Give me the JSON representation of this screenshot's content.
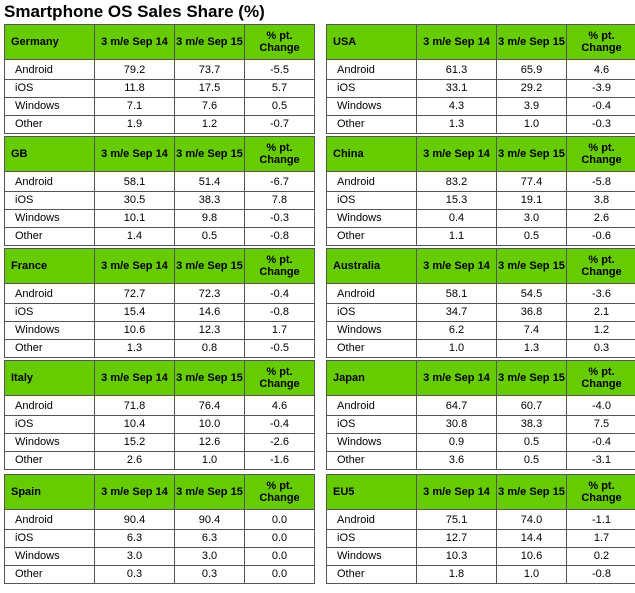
{
  "title": "Smartphone OS Sales Share (%)",
  "columns": {
    "col1": "3 m/e Sep 14",
    "col2": "3 m/e Sep 15",
    "col3": "% pt. Change"
  },
  "regions": [
    {
      "name": "Germany",
      "rows": [
        {
          "os": "Android",
          "v14": "79.2",
          "v15": "73.7",
          "chg": "-5.5"
        },
        {
          "os": "iOS",
          "v14": "11.8",
          "v15": "17.5",
          "chg": "5.7"
        },
        {
          "os": "Windows",
          "v14": "7.1",
          "v15": "7.6",
          "chg": "0.5"
        },
        {
          "os": "Other",
          "v14": "1.9",
          "v15": "1.2",
          "chg": "-0.7"
        }
      ]
    },
    {
      "name": "USA",
      "rows": [
        {
          "os": "Android",
          "v14": "61.3",
          "v15": "65.9",
          "chg": "4.6"
        },
        {
          "os": "iOS",
          "v14": "33.1",
          "v15": "29.2",
          "chg": "-3.9"
        },
        {
          "os": "Windows",
          "v14": "4.3",
          "v15": "3.9",
          "chg": "-0.4"
        },
        {
          "os": "Other",
          "v14": "1.3",
          "v15": "1.0",
          "chg": "-0.3"
        }
      ]
    },
    {
      "name": "GB",
      "rows": [
        {
          "os": "Android",
          "v14": "58.1",
          "v15": "51.4",
          "chg": "-6.7"
        },
        {
          "os": "iOS",
          "v14": "30.5",
          "v15": "38.3",
          "chg": "7.8"
        },
        {
          "os": "Windows",
          "v14": "10.1",
          "v15": "9.8",
          "chg": "-0.3"
        },
        {
          "os": "Other",
          "v14": "1.4",
          "v15": "0.5",
          "chg": "-0.8"
        }
      ]
    },
    {
      "name": "China",
      "rows": [
        {
          "os": "Android",
          "v14": "83.2",
          "v15": "77.4",
          "chg": "-5.8"
        },
        {
          "os": "iOS",
          "v14": "15.3",
          "v15": "19.1",
          "chg": "3.8"
        },
        {
          "os": "Windows",
          "v14": "0.4",
          "v15": "3.0",
          "chg": "2.6"
        },
        {
          "os": "Other",
          "v14": "1.1",
          "v15": "0.5",
          "chg": "-0.6"
        }
      ]
    },
    {
      "name": "France",
      "rows": [
        {
          "os": "Android",
          "v14": "72.7",
          "v15": "72.3",
          "chg": "-0.4"
        },
        {
          "os": "iOS",
          "v14": "15.4",
          "v15": "14.6",
          "chg": "-0.8"
        },
        {
          "os": "Windows",
          "v14": "10.6",
          "v15": "12.3",
          "chg": "1.7"
        },
        {
          "os": "Other",
          "v14": "1.3",
          "v15": "0.8",
          "chg": "-0.5"
        }
      ]
    },
    {
      "name": "Australia",
      "rows": [
        {
          "os": "Android",
          "v14": "58.1",
          "v15": "54.5",
          "chg": "-3.6"
        },
        {
          "os": "iOS",
          "v14": "34.7",
          "v15": "36.8",
          "chg": "2.1"
        },
        {
          "os": "Windows",
          "v14": "6.2",
          "v15": "7.4",
          "chg": "1.2"
        },
        {
          "os": "Other",
          "v14": "1.0",
          "v15": "1.3",
          "chg": "0.3"
        }
      ]
    },
    {
      "name": "Italy",
      "rows": [
        {
          "os": "Android",
          "v14": "71.8",
          "v15": "76.4",
          "chg": "4.6"
        },
        {
          "os": "iOS",
          "v14": "10.4",
          "v15": "10.0",
          "chg": "-0.4"
        },
        {
          "os": "Windows",
          "v14": "15.2",
          "v15": "12.6",
          "chg": "-2.6"
        },
        {
          "os": "Other",
          "v14": "2.6",
          "v15": "1.0",
          "chg": "-1.6"
        }
      ]
    },
    {
      "name": "Japan",
      "rows": [
        {
          "os": "Android",
          "v14": "64.7",
          "v15": "60.7",
          "chg": "-4.0"
        },
        {
          "os": "iOS",
          "v14": "30.8",
          "v15": "38.3",
          "chg": "7.5"
        },
        {
          "os": "Windows",
          "v14": "0.9",
          "v15": "0.5",
          "chg": "-0.4"
        },
        {
          "os": "Other",
          "v14": "3.6",
          "v15": "0.5",
          "chg": "-3.1"
        }
      ]
    },
    {
      "name": "Spain",
      "rows": [
        {
          "os": "Android",
          "v14": "90.4",
          "v15": "90.4",
          "chg": "0.0"
        },
        {
          "os": "iOS",
          "v14": "6.3",
          "v15": "6.3",
          "chg": "0.0"
        },
        {
          "os": "Windows",
          "v14": "3.0",
          "v15": "3.0",
          "chg": "0.0"
        },
        {
          "os": "Other",
          "v14": "0.3",
          "v15": "0.3",
          "chg": "0.0"
        }
      ]
    },
    {
      "name": "EU5",
      "rows": [
        {
          "os": "Android",
          "v14": "75.1",
          "v15": "74.0",
          "chg": "-1.1"
        },
        {
          "os": "iOS",
          "v14": "12.7",
          "v15": "14.4",
          "chg": "1.7"
        },
        {
          "os": "Windows",
          "v14": "10.3",
          "v15": "10.6",
          "chg": "0.2"
        },
        {
          "os": "Other",
          "v14": "1.8",
          "v15": "1.0",
          "chg": "-0.8"
        }
      ]
    }
  ]
}
